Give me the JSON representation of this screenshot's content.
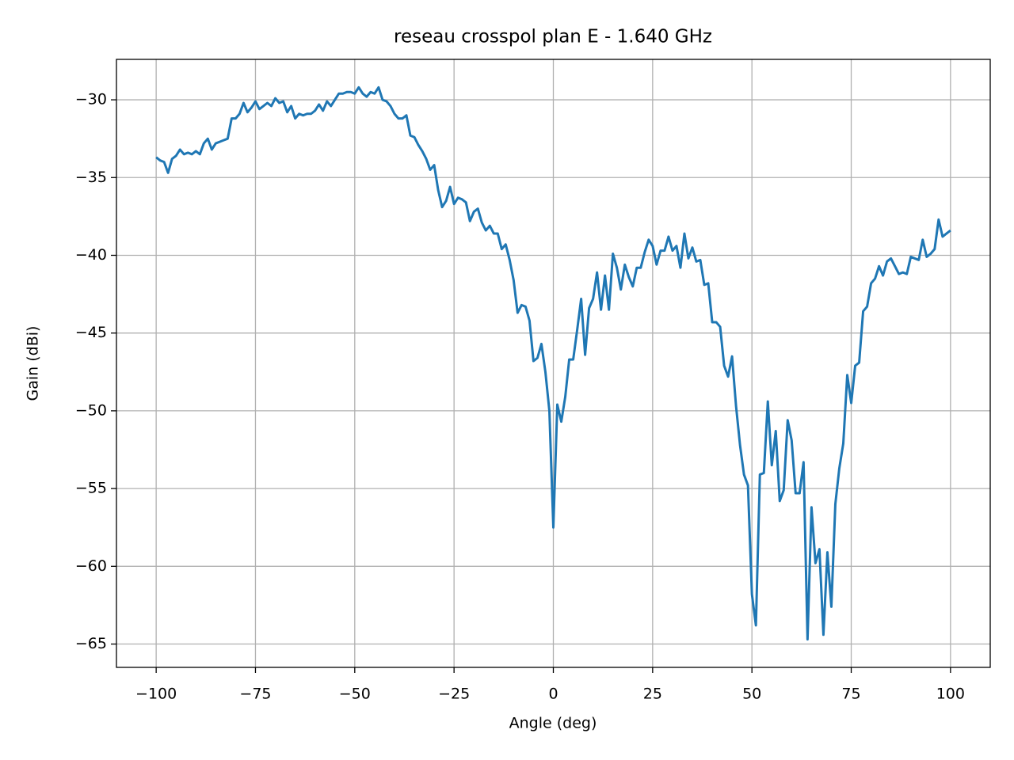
{
  "chart_data": {
    "type": "line",
    "title": "reseau crosspol plan E - 1.640 GHz",
    "xlabel": "Angle (deg)",
    "ylabel": "Gain (dBi)",
    "color": "#1f77b4",
    "grid": true,
    "xlim": [
      -110,
      110
    ],
    "ylim": [
      -66.5,
      -27.4
    ],
    "xticks": [
      {
        "value": -100,
        "label": "−100"
      },
      {
        "value": -75,
        "label": "−75"
      },
      {
        "value": -50,
        "label": "−50"
      },
      {
        "value": -25,
        "label": "−25"
      },
      0,
      25,
      50,
      75,
      100
    ],
    "yticks": [
      {
        "value": -65,
        "label": "−65"
      },
      {
        "value": -60,
        "label": "−60"
      },
      {
        "value": -55,
        "label": "−55"
      },
      {
        "value": -50,
        "label": "−50"
      },
      {
        "value": -45,
        "label": "−45"
      },
      {
        "value": -40,
        "label": "−40"
      },
      {
        "value": -35,
        "label": "−35"
      },
      {
        "value": -30,
        "label": "−30"
      }
    ],
    "x": [
      -100,
      -99,
      -98,
      -97,
      -96,
      -95,
      -94,
      -93,
      -92,
      -91,
      -90,
      -89,
      -88,
      -87,
      -86,
      -85,
      -84,
      -83,
      -82,
      -81,
      -80,
      -79,
      -78,
      -77,
      -76,
      -75,
      -74,
      -73,
      -72,
      -71,
      -70,
      -69,
      -68,
      -67,
      -66,
      -65,
      -64,
      -63,
      -62,
      -61,
      -60,
      -59,
      -58,
      -57,
      -56,
      -55,
      -54,
      -53,
      -52,
      -51,
      -50,
      -49,
      -48,
      -47,
      -46,
      -45,
      -44,
      -43,
      -42,
      -41,
      -40,
      -39,
      -38,
      -37,
      -36,
      -35,
      -34,
      -33,
      -32,
      -31,
      -30,
      -29,
      -28,
      -27,
      -26,
      -25,
      -24,
      -23,
      -22,
      -21,
      -20,
      -19,
      -18,
      -17,
      -16,
      -15,
      -14,
      -13,
      -12,
      -11,
      -10,
      -9,
      -8,
      -7,
      -6,
      -5,
      -4,
      -3,
      -2,
      -1,
      0,
      1,
      2,
      3,
      4,
      5,
      6,
      7,
      8,
      9,
      10,
      11,
      12,
      13,
      14,
      15,
      16,
      17,
      18,
      19,
      20,
      21,
      22,
      23,
      24,
      25,
      26,
      27,
      28,
      29,
      30,
      31,
      32,
      33,
      34,
      35,
      36,
      37,
      38,
      39,
      40,
      41,
      42,
      43,
      44,
      45,
      46,
      47,
      48,
      49,
      50,
      51,
      52,
      53,
      54,
      55,
      56,
      57,
      58,
      59,
      60,
      61,
      62,
      63,
      64,
      65,
      66,
      67,
      68,
      69,
      70,
      71,
      72,
      73,
      74,
      75,
      76,
      77,
      78,
      79,
      80,
      81,
      82,
      83,
      84,
      85,
      86,
      87,
      88,
      89,
      90,
      91,
      92,
      93,
      94,
      95,
      96,
      97,
      98,
      99,
      100
    ],
    "values": [
      -33.7,
      -33.9,
      -34.0,
      -34.7,
      -33.8,
      -33.6,
      -33.2,
      -33.5,
      -33.4,
      -33.5,
      -33.3,
      -33.5,
      -32.8,
      -32.5,
      -33.2,
      -32.8,
      -32.7,
      -32.6,
      -32.5,
      -31.2,
      -31.2,
      -30.9,
      -30.2,
      -30.8,
      -30.5,
      -30.1,
      -30.6,
      -30.4,
      -30.2,
      -30.4,
      -29.9,
      -30.2,
      -30.1,
      -30.8,
      -30.4,
      -31.2,
      -30.9,
      -31.0,
      -30.9,
      -30.9,
      -30.7,
      -30.3,
      -30.7,
      -30.1,
      -30.4,
      -30.0,
      -29.6,
      -29.6,
      -29.5,
      -29.5,
      -29.6,
      -29.2,
      -29.6,
      -29.8,
      -29.5,
      -29.6,
      -29.2,
      -30.0,
      -30.1,
      -30.4,
      -30.9,
      -31.2,
      -31.2,
      -31.0,
      -32.3,
      -32.4,
      -32.9,
      -33.3,
      -33.8,
      -34.5,
      -34.2,
      -35.8,
      -36.9,
      -36.5,
      -35.6,
      -36.7,
      -36.3,
      -36.4,
      -36.6,
      -37.8,
      -37.2,
      -37.0,
      -37.9,
      -38.4,
      -38.1,
      -38.6,
      -38.6,
      -39.6,
      -39.3,
      -40.3,
      -41.6,
      -43.7,
      -43.2,
      -43.3,
      -44.2,
      -46.8,
      -46.6,
      -45.7,
      -47.5,
      -50.0,
      -57.5,
      -49.6,
      -50.7,
      -49.1,
      -46.7,
      -46.7,
      -44.8,
      -42.8,
      -46.4,
      -43.4,
      -42.8,
      -41.1,
      -43.5,
      -41.3,
      -43.5,
      -39.9,
      -40.8,
      -42.2,
      -40.6,
      -41.4,
      -42.0,
      -40.8,
      -40.8,
      -39.8,
      -39.0,
      -39.4,
      -40.6,
      -39.7,
      -39.7,
      -38.8,
      -39.7,
      -39.4,
      -40.8,
      -38.6,
      -40.2,
      -39.5,
      -40.4,
      -40.3,
      -41.9,
      -41.8,
      -44.3,
      -44.3,
      -44.6,
      -47.1,
      -47.8,
      -46.5,
      -49.7,
      -52.2,
      -54.1,
      -54.8,
      -61.8,
      -63.8,
      -54.1,
      -54.0,
      -49.4,
      -53.5,
      -51.3,
      -55.8,
      -55.1,
      -50.6,
      -51.9,
      -55.3,
      -55.3,
      -53.3,
      -64.7,
      -56.2,
      -59.8,
      -58.9,
      -64.4,
      -59.1,
      -62.6,
      -56.0,
      -53.7,
      -52.1,
      -47.7,
      -49.5,
      -47.1,
      -46.9,
      -43.6,
      -43.3,
      -41.8,
      -41.5,
      -40.7,
      -41.3,
      -40.4,
      -40.2,
      -40.7,
      -41.2,
      -41.1,
      -41.2,
      -40.1,
      -40.2,
      -40.3,
      -39.0,
      -40.1,
      -39.9,
      -39.6,
      -37.7,
      -38.8,
      -38.6,
      -38.4
    ]
  }
}
